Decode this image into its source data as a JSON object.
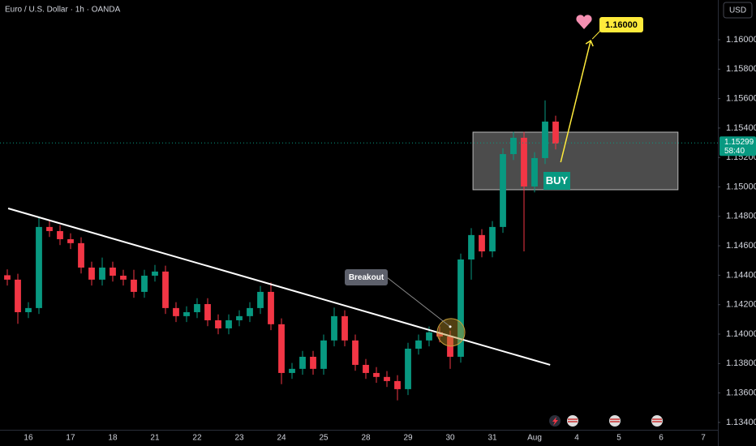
{
  "chart_data": {
    "type": "candlestick",
    "title": "Euro / U.S. Dollar · 1h · OANDA",
    "currency": "USD",
    "categories": [
      "16",
      "17",
      "18",
      "21",
      "22",
      "23",
      "24",
      "25",
      "28",
      "29",
      "30",
      "31",
      "Aug",
      "4",
      "5",
      "6",
      "7"
    ],
    "xlim": [
      -0.673,
      16.346
    ],
    "ylim": [
      1.1335,
      1.1627
    ],
    "grid": false,
    "yticks": [
      {
        "value": 1.134,
        "label": "1.13400"
      },
      {
        "value": 1.136,
        "label": "1.13600"
      },
      {
        "value": 1.138,
        "label": "1.13800"
      },
      {
        "value": 1.14,
        "label": "1.14000"
      },
      {
        "value": 1.142,
        "label": "1.14200"
      },
      {
        "value": 1.144,
        "label": "1.14400"
      },
      {
        "value": 1.146,
        "label": "1.14600"
      },
      {
        "value": 1.148,
        "label": "1.14800"
      },
      {
        "value": 1.15,
        "label": "1.15000"
      },
      {
        "value": 1.152,
        "label": "1.15200"
      },
      {
        "value": 1.154,
        "label": "1.15400"
      },
      {
        "value": 1.156,
        "label": "1.15600"
      },
      {
        "value": 1.158,
        "label": "1.15800"
      },
      {
        "value": 1.16,
        "label": "1.16000"
      }
    ],
    "up_color": "#089981",
    "down_color": "#f23645",
    "x": [
      -0.5,
      -0.25,
      0,
      0.25,
      0.5,
      0.75,
      1,
      1.25,
      1.5,
      1.75,
      2,
      2.25,
      2.5,
      2.75,
      3,
      3.25,
      3.5,
      3.75,
      4,
      4.25,
      4.5,
      4.75,
      5,
      5.25,
      5.5,
      5.75,
      6,
      6.25,
      6.5,
      6.75,
      7,
      7.25,
      7.5,
      7.75,
      8,
      8.25,
      8.5,
      8.75,
      9,
      9.25,
      9.5,
      9.75,
      10,
      10.25,
      10.5,
      10.75,
      11,
      11.25,
      11.5,
      11.75,
      12,
      12.25,
      12.5
    ],
    "open": [
      1.144,
      1.1437,
      1.14149,
      1.14177,
      1.14728,
      1.147,
      1.14645,
      1.14618,
      1.14452,
      1.1437,
      1.14452,
      1.14397,
      1.1437,
      1.14287,
      1.14397,
      1.14425,
      1.14177,
      1.14122,
      1.14149,
      1.14204,
      1.14094,
      1.14039,
      1.14094,
      1.14122,
      1.14177,
      1.14287,
      1.14067,
      1.13736,
      1.13764,
      1.13846,
      1.13764,
      1.13957,
      1.14122,
      1.13957,
      1.13791,
      1.13736,
      1.13709,
      1.13681,
      1.13626,
      1.13901,
      1.13957,
      1.14012,
      1.13984,
      1.13846,
      1.14507,
      1.14673,
      1.14562,
      1.14728,
      1.15223,
      1.15334,
      1.15003,
      1.15196,
      1.15444
    ],
    "high": [
      1.1444,
      1.1441,
      1.14217,
      1.1479,
      1.14768,
      1.1474,
      1.14685,
      1.14658,
      1.14492,
      1.1452,
      1.14492,
      1.14437,
      1.14437,
      1.14437,
      1.1447,
      1.14465,
      1.14217,
      1.14189,
      1.14244,
      1.14244,
      1.14134,
      1.14134,
      1.14162,
      1.14217,
      1.14327,
      1.1435,
      1.14107,
      1.13804,
      1.13886,
      1.13886,
      1.13997,
      1.1418,
      1.14162,
      1.13997,
      1.13831,
      1.13776,
      1.13749,
      1.13721,
      1.13941,
      1.13997,
      1.14052,
      1.14052,
      1.14024,
      1.14547,
      1.1472,
      1.14713,
      1.14768,
      1.15263,
      1.15374,
      1.15374,
      1.15236,
      1.15588,
      1.15484
    ],
    "low": [
      1.1433,
      1.1407,
      1.14109,
      1.14137,
      1.1466,
      1.14605,
      1.14578,
      1.14412,
      1.1433,
      1.1433,
      1.14357,
      1.1433,
      1.14247,
      1.14247,
      1.14357,
      1.14137,
      1.14082,
      1.14082,
      1.14109,
      1.14054,
      1.13999,
      1.13999,
      1.14054,
      1.14082,
      1.14137,
      1.14027,
      1.1366,
      1.13696,
      1.13724,
      1.13724,
      1.13724,
      1.13917,
      1.13917,
      1.13751,
      1.13696,
      1.13669,
      1.13641,
      1.1355,
      1.13586,
      1.13861,
      1.13917,
      1.13944,
      1.13764,
      1.13806,
      1.1437,
      1.14522,
      1.14522,
      1.14688,
      1.15183,
      1.14562,
      1.14963,
      1.15156,
      1.15255
    ],
    "close": [
      1.1437,
      1.14149,
      1.14177,
      1.14728,
      1.147,
      1.14645,
      1.14618,
      1.14452,
      1.1437,
      1.14452,
      1.14397,
      1.1437,
      1.14287,
      1.14397,
      1.14425,
      1.14177,
      1.14122,
      1.14149,
      1.14204,
      1.14094,
      1.14039,
      1.14094,
      1.14122,
      1.14177,
      1.14287,
      1.14067,
      1.13736,
      1.13764,
      1.13846,
      1.13764,
      1.13957,
      1.14122,
      1.13957,
      1.13791,
      1.13736,
      1.13709,
      1.13681,
      1.13626,
      1.13901,
      1.13957,
      1.14012,
      1.13984,
      1.13846,
      1.14507,
      1.14673,
      1.14562,
      1.14728,
      1.15223,
      1.15334,
      1.15003,
      1.15196,
      1.15444,
      1.15295
    ],
    "current_price": 1.15299,
    "countdown": "58:40",
    "trendline": {
      "x": [
        -0.48,
        12.37
      ],
      "y": [
        1.14854,
        1.13791
      ]
    },
    "zone": {
      "x": [
        10.54,
        15.4
      ],
      "y": [
        1.15372,
        1.14981
      ]
    },
    "breakout_point": {
      "x": 10.02,
      "y": 1.14012
    },
    "arrow": {
      "x": [
        12.62,
        13.33
      ],
      "y": [
        1.15168,
        1.15994
      ]
    },
    "annotations": {
      "breakout": "Breakout",
      "buy": "BUY",
      "target": "1.16000"
    }
  }
}
